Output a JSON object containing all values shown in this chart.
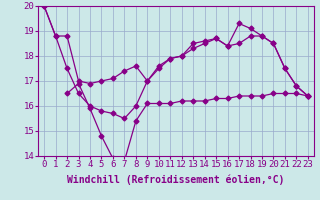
{
  "line1_x": [
    0,
    1,
    2,
    3,
    4,
    5,
    6,
    7,
    8,
    9,
    10,
    11,
    12,
    13,
    14,
    15,
    16,
    17,
    18,
    19,
    20,
    21,
    22,
    23
  ],
  "line1_y": [
    20.0,
    18.8,
    18.8,
    17.0,
    16.9,
    17.0,
    17.1,
    17.4,
    17.6,
    17.0,
    17.5,
    17.9,
    18.0,
    18.3,
    18.5,
    18.7,
    18.4,
    18.5,
    18.8,
    18.8,
    18.5,
    17.5,
    16.8,
    16.4
  ],
  "line2_x": [
    0,
    1,
    2,
    3,
    4,
    5,
    6,
    7,
    8,
    9,
    10,
    11,
    12,
    13,
    14,
    15,
    16,
    17,
    18,
    19,
    20,
    21,
    22,
    23
  ],
  "line2_y": [
    20.0,
    18.8,
    17.5,
    16.5,
    16.0,
    15.8,
    15.7,
    15.5,
    16.0,
    17.0,
    17.6,
    17.9,
    18.0,
    18.5,
    18.6,
    18.7,
    18.4,
    19.3,
    19.1,
    18.8,
    18.5,
    17.5,
    16.8,
    16.4
  ],
  "line3_x": [
    2,
    3,
    4,
    5,
    6,
    7,
    8,
    9,
    10,
    11,
    12,
    13,
    14,
    15,
    16,
    17,
    18,
    19,
    20,
    21,
    22,
    23
  ],
  "line3_y": [
    16.5,
    16.9,
    15.9,
    14.8,
    13.9,
    13.8,
    15.4,
    16.1,
    16.1,
    16.1,
    16.2,
    16.2,
    16.2,
    16.3,
    16.3,
    16.4,
    16.4,
    16.4,
    16.5,
    16.5,
    16.5,
    16.4
  ],
  "bg_color": "#cce8e8",
  "line_color": "#880088",
  "grid_color": "#99aacc",
  "xlabel": "Windchill (Refroidissement éolien,°C)",
  "xlim": [
    -0.5,
    23.5
  ],
  "ylim": [
    14,
    20
  ],
  "yticks": [
    14,
    15,
    16,
    17,
    18,
    19,
    20
  ],
  "xticks": [
    0,
    1,
    2,
    3,
    4,
    5,
    6,
    7,
    8,
    9,
    10,
    11,
    12,
    13,
    14,
    15,
    16,
    17,
    18,
    19,
    20,
    21,
    22,
    23
  ],
  "xlabel_fontsize": 7,
  "tick_fontsize": 6.5,
  "marker": "D",
  "markersize": 2.5,
  "linewidth": 0.9
}
